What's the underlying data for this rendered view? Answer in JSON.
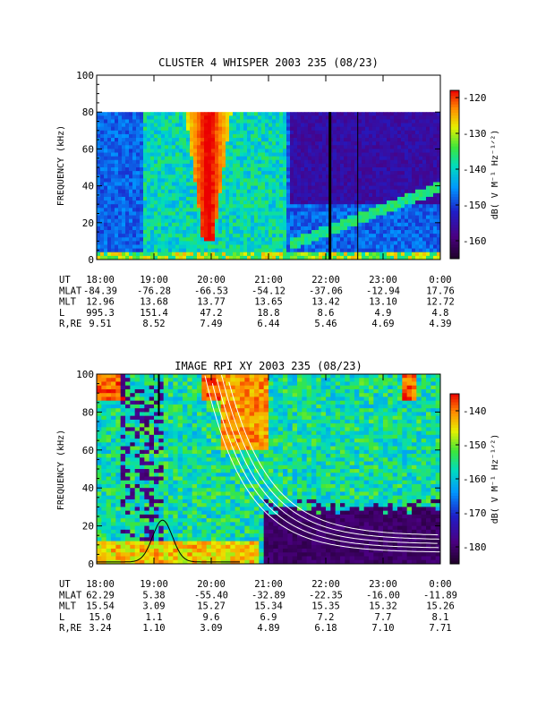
{
  "chart_data": [
    {
      "type": "heatmap",
      "title": "CLUSTER 4 WHISPER 2003 235 (08/23)",
      "ylabel": "FREQUENCY (kHz)",
      "ylim": [
        0,
        100
      ],
      "yticks": [
        "0",
        "20",
        "40",
        "60",
        "80",
        "100"
      ],
      "xlim_hours": [
        18,
        24
      ],
      "xticks": [
        "18:00",
        "19:00",
        "20:00",
        "21:00",
        "22:00",
        "23:00",
        "0:00"
      ],
      "colorbar": {
        "label": "dB( V M⁻¹ Hz⁻¹ᐟ²)",
        "range": [
          -165,
          -118
        ],
        "ticks": [
          "-120",
          "-130",
          "-140",
          "-150",
          "-160"
        ]
      },
      "data_coverage_khz": [
        0,
        80
      ],
      "ephemeris": {
        "rows": [
          {
            "label": "UT",
            "values": [
              "18:00",
              "19:00",
              "20:00",
              "21:00",
              "22:00",
              "23:00",
              "0:00"
            ]
          },
          {
            "label": "MLAT",
            "values": [
              "-84.39",
              "-76.28",
              "-66.53",
              "-54.12",
              "-37.06",
              "-12.94",
              "17.76"
            ]
          },
          {
            "label": "MLT",
            "values": [
              "12.96",
              "13.68",
              "13.77",
              "13.65",
              "13.42",
              "13.10",
              "12.72"
            ]
          },
          {
            "label": "L",
            "values": [
              "995.3",
              "151.4",
              "47.2",
              "18.8",
              "8.6",
              "4.9",
              "4.8"
            ]
          },
          {
            "label": "R,RE",
            "values": [
              "9.51",
              "8.52",
              "7.49",
              "6.44",
              "5.46",
              "4.69",
              "4.39"
            ]
          }
        ]
      }
    },
    {
      "type": "heatmap",
      "title": "IMAGE RPI XY 2003 235 (08/23)",
      "ylabel": "FREQUENCY (kHz)",
      "ylim": [
        0,
        100
      ],
      "yticks": [
        "0",
        "20",
        "40",
        "60",
        "80",
        "100"
      ],
      "xlim_hours": [
        18,
        24
      ],
      "xticks": [
        "18:00",
        "19:00",
        "20:00",
        "21:00",
        "22:00",
        "23:00",
        "0:00"
      ],
      "colorbar": {
        "label": "dB( V M⁻¹ Hz⁻¹ᐟ²)",
        "range": [
          -185,
          -135
        ],
        "ticks": [
          "-140",
          "-150",
          "-160",
          "-170",
          "-180"
        ]
      },
      "ephemeris": {
        "rows": [
          {
            "label": "UT",
            "values": [
              "18:00",
              "19:00",
              "20:00",
              "21:00",
              "22:00",
              "23:00",
              "0:00"
            ]
          },
          {
            "label": "MLAT",
            "values": [
              "62.29",
              "5.38",
              "-55.40",
              "-32.89",
              "-22.35",
              "-16.00",
              "-11.89"
            ]
          },
          {
            "label": "MLT",
            "values": [
              "15.54",
              "3.09",
              "15.27",
              "15.34",
              "15.35",
              "15.32",
              "15.26"
            ]
          },
          {
            "label": "L",
            "values": [
              "15.0",
              "1.1",
              "9.6",
              "6.9",
              "7.2",
              "7.7",
              "8.1"
            ]
          },
          {
            "label": "R,RE",
            "values": [
              "3.24",
              "1.10",
              "3.09",
              "4.89",
              "6.18",
              "7.10",
              "7.71"
            ]
          }
        ]
      }
    }
  ]
}
